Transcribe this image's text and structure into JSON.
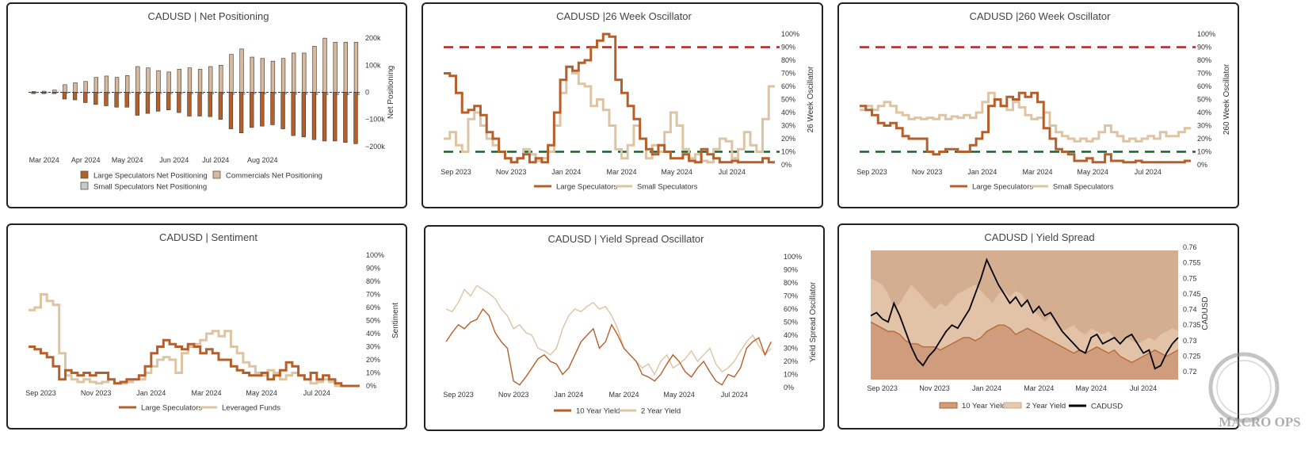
{
  "colors": {
    "large": "#b5602a",
    "small": "#ddc4a2",
    "commercial": "#d8b99c",
    "smallspec": "#c9c9c9",
    "red": "#b22222",
    "green": "#1e5e2e",
    "cad": "#000000",
    "area10": "#cf9d7d",
    "area2": "#e8c9b0"
  },
  "chart_data": [
    {
      "id": "net",
      "type": "bar",
      "title": "CADUSD | Net Positioning",
      "ylabel": "Net Positioning",
      "ylim": [
        -230000,
        215000
      ],
      "yticks": [
        200000,
        100000,
        0,
        -100000,
        -200000
      ],
      "ytick_labels": [
        "200k",
        "100k",
        "0",
        "−100k",
        "−200k"
      ],
      "x_tick_labels": [
        "Mar 2024",
        "Apr 2024",
        "May 2024",
        "Jun 2024",
        "Jul 2024",
        "Aug 2024"
      ],
      "x_tick_positions": [
        1.5,
        5.5,
        9.5,
        14,
        18,
        22.5
      ],
      "series": [
        {
          "name": "Large Speculators Net Positioning",
          "values": [
            -5000,
            -5000,
            -5000,
            -25000,
            -28000,
            -38000,
            -45000,
            -50000,
            -55000,
            -55000,
            -85000,
            -78000,
            -70000,
            -65000,
            -75000,
            -88000,
            -88000,
            -90000,
            -100000,
            -135000,
            -150000,
            -130000,
            -125000,
            -120000,
            -135000,
            -160000,
            -165000,
            -175000,
            -180000,
            -180000,
            -185000,
            -190000
          ]
        },
        {
          "name": "Commercials Net Positioning",
          "values": [
            3000,
            4000,
            8000,
            28000,
            35000,
            40000,
            55000,
            60000,
            55000,
            62000,
            95000,
            90000,
            80000,
            75000,
            85000,
            90000,
            85000,
            95000,
            100000,
            140000,
            160000,
            130000,
            125000,
            115000,
            125000,
            145000,
            145000,
            170000,
            200000,
            185000,
            185000,
            185000
          ]
        },
        {
          "name": "Small Speculators Net Positioning",
          "values": [
            -3000,
            -3000,
            -2000,
            -4000,
            -3000,
            -4000,
            -4000,
            -5000,
            -5000,
            -5000,
            -6000,
            -6000,
            -5000,
            -6000,
            -5000,
            -6000,
            -6000,
            -6000,
            -7000,
            -8000,
            -8000,
            -7000,
            -7000,
            -6000,
            -7000,
            -8000,
            -8000,
            -9000,
            -10000,
            -10000,
            -10000,
            -10000
          ]
        }
      ]
    },
    {
      "id": "osc26",
      "type": "line",
      "title": "CADUSD |26 Week Oscillator",
      "ylabel": "26 Week Oscillator",
      "ylim": [
        0,
        100
      ],
      "ytick_labels": [
        "100%",
        "90%",
        "80%",
        "70%",
        "60%",
        "50%",
        "40%",
        "30%",
        "20%",
        "10%",
        "0%"
      ],
      "x_tick_labels": [
        "Sep 2023",
        "Nov 2023",
        "Jan 2024",
        "Mar 2024",
        "May 2024",
        "Jul 2024"
      ],
      "x_tick_positions": [
        2,
        11,
        20,
        29,
        38,
        47
      ],
      "thresholds": [
        90,
        10
      ],
      "series": [
        {
          "name": "Large Speculators",
          "values": [
            70,
            68,
            55,
            40,
            42,
            45,
            38,
            25,
            20,
            10,
            5,
            2,
            5,
            8,
            2,
            5,
            2,
            15,
            40,
            65,
            75,
            72,
            78,
            80,
            90,
            95,
            100,
            98,
            65,
            55,
            45,
            35,
            20,
            12,
            8,
            15,
            10,
            5,
            5,
            8,
            3,
            2,
            12,
            8,
            5,
            2,
            2,
            3,
            2,
            2,
            2,
            2,
            5,
            2
          ]
        },
        {
          "name": "Small Speculators",
          "values": [
            20,
            25,
            15,
            10,
            35,
            40,
            30,
            20,
            15,
            10,
            5,
            2,
            5,
            12,
            8,
            3,
            5,
            10,
            30,
            55,
            75,
            70,
            62,
            60,
            45,
            50,
            42,
            30,
            12,
            5,
            15,
            30,
            20,
            5,
            15,
            10,
            25,
            40,
            30,
            12,
            5,
            8,
            3,
            2,
            12,
            20,
            18,
            5,
            12,
            25,
            15,
            10,
            35,
            60
          ]
        }
      ]
    },
    {
      "id": "osc260",
      "type": "line",
      "title": "CADUSD |260 Week Oscillator",
      "ylabel": "260 Week Oscillator",
      "ylim": [
        0,
        100
      ],
      "ytick_labels": [
        "100%",
        "90%",
        "80%",
        "70%",
        "60%",
        "50%",
        "40%",
        "30%",
        "20%",
        "10%",
        "0%"
      ],
      "x_tick_labels": [
        "Sep 2023",
        "Nov 2023",
        "Jan 2024",
        "Mar 2024",
        "May 2024",
        "Jul 2024"
      ],
      "x_tick_positions": [
        2,
        11,
        20,
        29,
        38,
        47
      ],
      "thresholds": [
        90,
        10
      ],
      "series": [
        {
          "name": "Large Speculators",
          "values": [
            45,
            42,
            38,
            32,
            30,
            32,
            28,
            22,
            20,
            20,
            20,
            10,
            8,
            10,
            12,
            12,
            10,
            10,
            15,
            20,
            25,
            45,
            50,
            45,
            52,
            50,
            55,
            52,
            55,
            48,
            28,
            20,
            12,
            10,
            8,
            3,
            3,
            5,
            2,
            2,
            8,
            3,
            3,
            2,
            2,
            3,
            2,
            2,
            2,
            2,
            2,
            2,
            2,
            3
          ]
        },
        {
          "name": "Small Speculators",
          "values": [
            42,
            45,
            42,
            45,
            48,
            45,
            40,
            38,
            35,
            36,
            35,
            36,
            35,
            38,
            35,
            37,
            36,
            38,
            36,
            40,
            48,
            55,
            50,
            45,
            42,
            48,
            44,
            38,
            35,
            36,
            40,
            30,
            25,
            22,
            20,
            18,
            20,
            18,
            20,
            25,
            30,
            25,
            22,
            18,
            20,
            18,
            20,
            22,
            20,
            25,
            22,
            22,
            25,
            28
          ]
        }
      ]
    },
    {
      "id": "sent",
      "type": "line",
      "title": "CADUSD | Sentiment",
      "ylabel": "Sentiment",
      "ylim": [
        0,
        100
      ],
      "ytick_labels": [
        "100%",
        "90%",
        "80%",
        "70%",
        "60%",
        "50%",
        "40%",
        "30%",
        "20%",
        "10%",
        "0%"
      ],
      "x_tick_labels": [
        "Sep 2023",
        "Nov 2023",
        "Jan 2024",
        "Mar 2024",
        "May 2024",
        "Jul 2024"
      ],
      "x_tick_positions": [
        2,
        11,
        20,
        29,
        38,
        47
      ],
      "series": [
        {
          "name": "Large Speculators",
          "values": [
            30,
            28,
            25,
            22,
            15,
            5,
            12,
            10,
            8,
            10,
            8,
            10,
            10,
            5,
            2,
            3,
            5,
            5,
            8,
            15,
            25,
            30,
            35,
            32,
            30,
            28,
            32,
            30,
            25,
            28,
            25,
            20,
            20,
            15,
            12,
            10,
            8,
            8,
            10,
            5,
            8,
            12,
            18,
            15,
            8,
            5,
            10,
            5,
            8,
            5,
            2,
            0,
            0,
            0
          ]
        },
        {
          "name": "Leveraged Funds",
          "values": [
            58,
            60,
            70,
            65,
            62,
            25,
            8,
            5,
            3,
            5,
            3,
            2,
            3,
            5,
            2,
            2,
            3,
            5,
            5,
            10,
            15,
            20,
            22,
            20,
            10,
            25,
            30,
            32,
            35,
            40,
            42,
            38,
            42,
            30,
            25,
            18,
            15,
            10,
            8,
            12,
            10,
            5,
            8,
            10,
            8,
            5,
            2,
            3,
            5,
            3,
            0,
            0,
            0,
            0
          ]
        }
      ]
    },
    {
      "id": "ysosc",
      "type": "line",
      "title": "CADUSD | Yield Spread Oscillator",
      "ylabel": "Yield Spread Oscillator",
      "ylim": [
        0,
        100
      ],
      "ytick_labels": [
        "100%",
        "90%",
        "80%",
        "70%",
        "60%",
        "50%",
        "40%",
        "30%",
        "20%",
        "10%",
        "0%"
      ],
      "x_tick_labels": [
        "Sep 2023",
        "Nov 2023",
        "Jan 2024",
        "Mar 2024",
        "May 2024",
        "Jul 2024"
      ],
      "x_tick_positions": [
        2,
        11,
        20,
        29,
        38,
        47
      ],
      "series": [
        {
          "name": "10 Year Yield",
          "values": [
            35,
            42,
            48,
            45,
            50,
            52,
            60,
            55,
            42,
            35,
            30,
            5,
            2,
            8,
            15,
            22,
            25,
            20,
            18,
            10,
            15,
            25,
            35,
            40,
            45,
            30,
            35,
            48,
            40,
            30,
            25,
            20,
            10,
            8,
            5,
            10,
            18,
            25,
            20,
            12,
            8,
            15,
            20,
            12,
            5,
            2,
            10,
            8,
            15,
            30,
            35,
            38,
            25,
            35
          ]
        },
        {
          "name": "2 Year Yield",
          "values": [
            60,
            58,
            65,
            75,
            70,
            78,
            75,
            72,
            68,
            60,
            55,
            45,
            48,
            42,
            40,
            30,
            28,
            25,
            30,
            45,
            55,
            60,
            58,
            62,
            65,
            60,
            62,
            55,
            45,
            30,
            25,
            20,
            15,
            18,
            10,
            20,
            25,
            15,
            18,
            22,
            28,
            20,
            25,
            30,
            18,
            12,
            15,
            20,
            28,
            35,
            40,
            32,
            25,
            30
          ]
        }
      ]
    },
    {
      "id": "yspread",
      "type": "area",
      "title": "CADUSD | Yield Spread",
      "ylabel": "CADUSD",
      "ylim": [
        0.7175,
        0.76
      ],
      "yticks": [
        0.76,
        0.755,
        0.75,
        0.745,
        0.74,
        0.735,
        0.73,
        0.725,
        0.72
      ],
      "ytick_labels": [
        "0.76",
        "0.755",
        "0.75",
        "0.745",
        "0.74",
        "0.735",
        "0.73",
        "0.725",
        "0.72"
      ],
      "x_tick_labels": [
        "Sep 2023",
        "Nov 2023",
        "Jan 2024",
        "Mar 2024",
        "May 2024",
        "Jul 2024"
      ],
      "x_tick_positions": [
        2,
        11,
        20,
        29,
        38,
        47
      ],
      "series": [
        {
          "name": "10 Year Yield",
          "values": [
            0.736,
            0.735,
            0.734,
            0.733,
            0.733,
            0.732,
            0.73,
            0.729,
            0.729,
            0.728,
            0.728,
            0.728,
            0.727,
            0.728,
            0.729,
            0.73,
            0.731,
            0.731,
            0.73,
            0.731,
            0.733,
            0.734,
            0.735,
            0.735,
            0.734,
            0.732,
            0.733,
            0.734,
            0.733,
            0.732,
            0.731,
            0.73,
            0.729,
            0.728,
            0.727,
            0.726,
            0.727,
            0.726,
            0.727,
            0.728,
            0.727,
            0.726,
            0.727,
            0.725,
            0.724,
            0.723,
            0.724,
            0.725,
            0.726,
            0.727,
            0.726,
            0.725,
            0.726,
            0.727
          ]
        },
        {
          "name": "2 Year Yield",
          "values": [
            0.75,
            0.749,
            0.748,
            0.745,
            0.74,
            0.742,
            0.745,
            0.748,
            0.746,
            0.744,
            0.742,
            0.74,
            0.742,
            0.741,
            0.743,
            0.745,
            0.746,
            0.747,
            0.748,
            0.746,
            0.744,
            0.742,
            0.745,
            0.746,
            0.744,
            0.746,
            0.745,
            0.742,
            0.74,
            0.738,
            0.736,
            0.738,
            0.735,
            0.733,
            0.734,
            0.735,
            0.733,
            0.732,
            0.734,
            0.733,
            0.732,
            0.733,
            0.731,
            0.73,
            0.731,
            0.73,
            0.729,
            0.73,
            0.731,
            0.73,
            0.732,
            0.733,
            0.734,
            0.733
          ]
        },
        {
          "name": "CADUSD",
          "values": [
            0.738,
            0.739,
            0.737,
            0.736,
            0.742,
            0.738,
            0.733,
            0.728,
            0.724,
            0.722,
            0.725,
            0.727,
            0.73,
            0.733,
            0.735,
            0.734,
            0.737,
            0.74,
            0.745,
            0.75,
            0.756,
            0.752,
            0.748,
            0.745,
            0.742,
            0.744,
            0.741,
            0.743,
            0.739,
            0.741,
            0.738,
            0.739,
            0.736,
            0.733,
            0.731,
            0.729,
            0.727,
            0.726,
            0.731,
            0.732,
            0.729,
            0.73,
            0.731,
            0.729,
            0.731,
            0.732,
            0.729,
            0.726,
            0.727,
            0.721,
            0.722,
            0.726,
            0.729,
            0.731
          ]
        }
      ]
    }
  ],
  "watermark": "MACRO OPS"
}
